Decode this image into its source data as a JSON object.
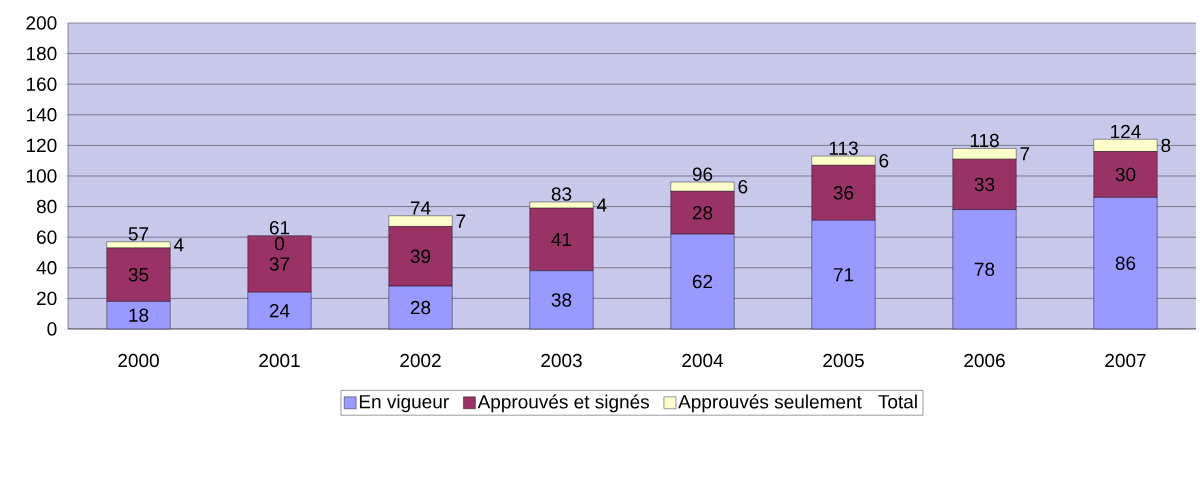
{
  "chart_data": {
    "type": "bar",
    "stacked": true,
    "categories": [
      "2000",
      "2001",
      "2002",
      "2003",
      "2004",
      "2005",
      "2006",
      "2007"
    ],
    "series": [
      {
        "name": "En vigueur",
        "color": "#9999ff",
        "values": [
          18,
          24,
          28,
          38,
          62,
          71,
          78,
          86
        ]
      },
      {
        "name": "Approuvés et signés",
        "color": "#993366",
        "values": [
          35,
          37,
          39,
          41,
          28,
          36,
          33,
          30
        ]
      },
      {
        "name": "Approuvés seulement",
        "color": "#ffffcc",
        "values": [
          4,
          0,
          7,
          4,
          6,
          6,
          7,
          8
        ]
      }
    ],
    "totals": [
      "57",
      "61",
      "74",
      "83",
      "96",
      "113",
      "118",
      "124"
    ],
    "annotations": [
      "Total"
    ],
    "data_labels": true,
    "ylim": [
      0,
      200
    ],
    "yticks": [
      0,
      20,
      40,
      60,
      80,
      100,
      120,
      140,
      160,
      180,
      200
    ],
    "grid": "y",
    "legend": "bottom"
  }
}
